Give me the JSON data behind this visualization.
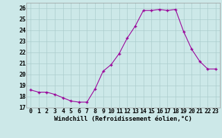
{
  "x": [
    0,
    1,
    2,
    3,
    4,
    5,
    6,
    7,
    8,
    9,
    10,
    11,
    12,
    13,
    14,
    15,
    16,
    17,
    18,
    19,
    20,
    21,
    22,
    23
  ],
  "y": [
    18.6,
    18.4,
    18.4,
    18.2,
    17.9,
    17.6,
    17.5,
    17.5,
    18.7,
    20.3,
    20.9,
    21.9,
    23.3,
    24.4,
    25.8,
    25.8,
    25.9,
    25.8,
    25.9,
    23.9,
    22.3,
    21.2,
    20.5,
    20.5
  ],
  "line_color": "#990099",
  "marker": "+",
  "marker_size": 3.5,
  "marker_lw": 1.0,
  "bg_color": "#cce8e8",
  "grid_color": "#aacccc",
  "xlabel": "Windchill (Refroidissement éolien,°C)",
  "ylabel": "",
  "xlim": [
    -0.5,
    23.5
  ],
  "ylim": [
    17,
    26.5
  ],
  "yticks": [
    17,
    18,
    19,
    20,
    21,
    22,
    23,
    24,
    25,
    26
  ],
  "xticks": [
    0,
    1,
    2,
    3,
    4,
    5,
    6,
    7,
    8,
    9,
    10,
    11,
    12,
    13,
    14,
    15,
    16,
    17,
    18,
    19,
    20,
    21,
    22,
    23
  ],
  "label_fontsize": 6.5,
  "tick_fontsize": 6.0
}
